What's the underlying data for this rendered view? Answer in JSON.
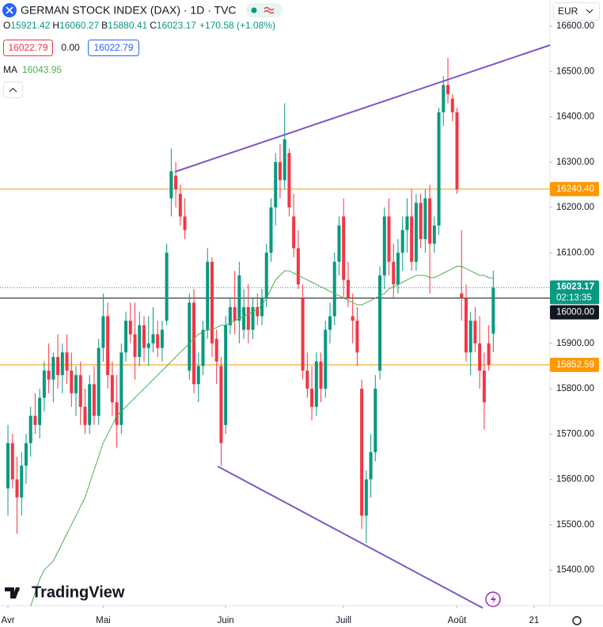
{
  "header": {
    "title": "GERMAN STOCK INDEX (DAX) · 1D · TVC",
    "ohlc": [
      {
        "key": "O",
        "value": "15921.42"
      },
      {
        "key": "H",
        "value": "16060.27"
      },
      {
        "key": "B",
        "value": "15880.41"
      },
      {
        "key": "C",
        "value": "16023.17"
      }
    ],
    "change": "+170.58 (+1.08%)",
    "bid": "16022.79",
    "spread": "0.00",
    "ask": "16022.79",
    "currency": "EUR",
    "brand": "TradingView"
  },
  "chart_data": {
    "type": "candlestick",
    "up_color": "#089981",
    "down_color": "#f23645",
    "ohlc": [
      [
        15580,
        15720,
        15520,
        15680
      ],
      [
        15680,
        15700,
        15580,
        15600
      ],
      [
        15600,
        15650,
        15480,
        15560
      ],
      [
        15560,
        15660,
        15520,
        15630
      ],
      [
        15630,
        15700,
        15590,
        15680
      ],
      [
        15680,
        15760,
        15650,
        15740
      ],
      [
        15740,
        15790,
        15700,
        15720
      ],
      [
        15720,
        15800,
        15690,
        15780
      ],
      [
        15780,
        15860,
        15750,
        15840
      ],
      [
        15840,
        15900,
        15790,
        15820
      ],
      [
        15820,
        15880,
        15770,
        15870
      ],
      [
        15870,
        15920,
        15800,
        15830
      ],
      [
        15830,
        15900,
        15790,
        15880
      ],
      [
        15880,
        15920,
        15810,
        15840
      ],
      [
        15840,
        15880,
        15760,
        15790
      ],
      [
        15790,
        15850,
        15740,
        15830
      ],
      [
        15830,
        15860,
        15720,
        15760
      ],
      [
        15760,
        15800,
        15700,
        15720
      ],
      [
        15720,
        15830,
        15700,
        15810
      ],
      [
        15810,
        15850,
        15720,
        15740
      ],
      [
        15740,
        15910,
        15720,
        15890
      ],
      [
        15890,
        16010,
        15860,
        15960
      ],
      [
        15960,
        15990,
        15800,
        15830
      ],
      [
        15830,
        15860,
        15740,
        15770
      ],
      [
        15770,
        15830,
        15670,
        15720
      ],
      [
        15720,
        15900,
        15700,
        15880
      ],
      [
        15880,
        15970,
        15860,
        15950
      ],
      [
        15950,
        15990,
        15900,
        15920
      ],
      [
        15920,
        15990,
        15820,
        15870
      ],
      [
        15870,
        15970,
        15850,
        15940
      ],
      [
        15940,
        15960,
        15860,
        15890
      ],
      [
        15890,
        15960,
        15850,
        15900
      ],
      [
        15900,
        15980,
        15880,
        15920
      ],
      [
        15920,
        15950,
        15870,
        15890
      ],
      [
        15890,
        15950,
        15860,
        15930
      ],
      [
        15950,
        16120,
        15940,
        16100
      ],
      [
        16220,
        16330,
        16180,
        16280
      ],
      [
        16270,
        16300,
        16200,
        16240
      ],
      [
        16230,
        16250,
        16160,
        16180
      ],
      [
        16180,
        16220,
        16130,
        16150
      ],
      [
        15840,
        16010,
        15820,
        15990
      ],
      [
        15990,
        16020,
        15790,
        15810
      ],
      [
        15810,
        15880,
        15770,
        15850
      ],
      [
        15850,
        15950,
        15830,
        15930
      ],
      [
        15930,
        16110,
        15910,
        16080
      ],
      [
        16080,
        16090,
        15870,
        15900
      ],
      [
        15910,
        15930,
        15810,
        15860
      ],
      [
        15850,
        15870,
        15630,
        15680
      ],
      [
        15720,
        15960,
        15700,
        15940
      ],
      [
        15940,
        16000,
        15920,
        15980
      ],
      [
        15980,
        16060,
        15920,
        15950
      ],
      [
        15950,
        16080,
        15900,
        16050
      ],
      [
        15930,
        16020,
        15910,
        15980
      ],
      [
        15980,
        16030,
        15900,
        15930
      ],
      [
        15930,
        16000,
        15910,
        15980
      ],
      [
        15980,
        16010,
        15940,
        15960
      ],
      [
        15960,
        16020,
        15940,
        16000
      ],
      [
        16000,
        16120,
        15980,
        16100
      ],
      [
        16100,
        16220,
        16080,
        16200
      ],
      [
        16200,
        16320,
        16160,
        16300
      ],
      [
        16300,
        16340,
        16220,
        16260
      ],
      [
        16260,
        16430,
        16240,
        16350
      ],
      [
        16320,
        16330,
        16180,
        16200
      ],
      [
        16180,
        16230,
        16090,
        16110
      ],
      [
        16110,
        16150,
        16020,
        16030
      ],
      [
        16000,
        16030,
        15820,
        15840
      ],
      [
        15840,
        15880,
        15780,
        15800
      ],
      [
        15800,
        15850,
        15730,
        15760
      ],
      [
        15760,
        15880,
        15740,
        15860
      ],
      [
        15860,
        15880,
        15770,
        15800
      ],
      [
        15800,
        15950,
        15780,
        15930
      ],
      [
        15930,
        15990,
        15900,
        15960
      ],
      [
        15960,
        16100,
        15940,
        16080
      ],
      [
        16080,
        16180,
        16050,
        16160
      ],
      [
        16180,
        16220,
        16000,
        16040
      ],
      [
        16040,
        16080,
        15980,
        16000
      ],
      [
        15960,
        16010,
        15900,
        15950
      ],
      [
        15950,
        15980,
        15850,
        15880
      ],
      [
        15800,
        15820,
        15490,
        15520
      ],
      [
        15520,
        15620,
        15460,
        15600
      ],
      [
        15600,
        15700,
        15560,
        15660
      ],
      [
        15660,
        15830,
        15640,
        15800
      ],
      [
        15840,
        16070,
        15820,
        16050
      ],
      [
        16050,
        16200,
        16020,
        16180
      ],
      [
        16180,
        16220,
        16050,
        16080
      ],
      [
        16080,
        16120,
        16000,
        16030
      ],
      [
        16030,
        16130,
        16010,
        16100
      ],
      [
        16100,
        16180,
        16060,
        16150
      ],
      [
        16150,
        16220,
        16100,
        16180
      ],
      [
        16180,
        16240,
        16060,
        16080
      ],
      [
        16080,
        16230,
        16060,
        16210
      ],
      [
        16210,
        16230,
        16110,
        16130
      ],
      [
        16130,
        16240,
        16100,
        16220
      ],
      [
        16220,
        16250,
        16010,
        16120
      ],
      [
        16120,
        16180,
        16100,
        16160
      ],
      [
        16160,
        16420,
        16140,
        16410
      ],
      [
        16410,
        16490,
        16380,
        16470
      ],
      [
        16470,
        16530,
        16430,
        16450
      ],
      [
        16440,
        16450,
        16390,
        16410
      ],
      [
        16410,
        16420,
        16230,
        16240
      ],
      [
        16010,
        16150,
        15950,
        16000
      ],
      [
        16000,
        16030,
        15860,
        15880
      ],
      [
        15880,
        15970,
        15830,
        15950
      ],
      [
        15950,
        15980,
        15880,
        15900
      ],
      [
        15900,
        15960,
        15800,
        15840
      ],
      [
        15840,
        15880,
        15710,
        15770
      ],
      [
        15900,
        15940,
        15840,
        15852.59
      ],
      [
        15921.42,
        16060.27,
        15880.41,
        16023.17
      ]
    ],
    "ma": {
      "name": "MA",
      "value_label": "16043.95",
      "color": "#4caf50",
      "values": [
        null,
        null,
        null,
        null,
        null,
        15320,
        15350,
        15380,
        15400,
        15410,
        15420,
        15440,
        15460,
        15480,
        15500,
        15520,
        15540,
        15560,
        15590,
        15620,
        15650,
        15680,
        15700,
        15720,
        15740,
        15750,
        15760,
        15770,
        15780,
        15790,
        15800,
        15810,
        15820,
        15830,
        15840,
        15850,
        15860,
        15870,
        15880,
        15890,
        15900,
        15910,
        15920,
        15925,
        15930,
        15930,
        15935,
        15940,
        15940,
        15945,
        15950,
        15955,
        15960,
        15965,
        15970,
        15975,
        15985,
        16000,
        16020,
        16040,
        16050,
        16060,
        16060,
        16055,
        16050,
        16045,
        16040,
        16035,
        16030,
        16025,
        16020,
        16015,
        16010,
        16005,
        16000,
        15995,
        15990,
        15985,
        15985,
        15990,
        15995,
        16000,
        16005,
        16010,
        16020,
        16025,
        16030,
        16035,
        16040,
        16045,
        16050,
        16050,
        16050,
        16045,
        16045,
        16050,
        16055,
        16060,
        16065,
        16070,
        16070,
        16065,
        16060,
        16055,
        16050,
        16050,
        16045,
        16043.95
      ]
    },
    "xlim": [
      -1.75,
      119.5
    ],
    "xticks": [
      {
        "value": 0,
        "label": "Avr"
      },
      {
        "value": 21,
        "label": "Mai"
      },
      {
        "value": 48,
        "label": "Juin"
      },
      {
        "value": 74,
        "label": "Juill"
      },
      {
        "value": 99,
        "label": "Août"
      },
      {
        "value": 116,
        "label": "21"
      }
    ],
    "ylim": [
      15321.4,
      16657.6
    ],
    "yticks": [
      {
        "value": 16600,
        "label": "16600.00"
      },
      {
        "value": 16500,
        "label": "16500.00"
      },
      {
        "value": 16400,
        "label": "16400.00"
      },
      {
        "value": 16300,
        "label": "16300.00"
      },
      {
        "value": 16200,
        "label": "16200.00"
      },
      {
        "value": 16100,
        "label": "16100.00"
      },
      {
        "value": 16000,
        "label": "16000.00"
      },
      {
        "value": 15900,
        "label": "15900.00"
      },
      {
        "value": 15800,
        "label": "15800.00"
      },
      {
        "value": 15700,
        "label": "15700.00"
      },
      {
        "value": 15600,
        "label": "15600.00"
      },
      {
        "value": 15500,
        "label": "15500.00"
      },
      {
        "value": 15400,
        "label": "15400.00"
      }
    ],
    "price_lines": [
      {
        "value": 16240.4,
        "label": "16240.40",
        "color": "#ff9800"
      },
      {
        "value": 15852.59,
        "label": "15852.59",
        "color": "#ff9800"
      },
      {
        "value": 16000,
        "label": "16000.00",
        "color": "#131722"
      }
    ],
    "last": {
      "value": 16023.17,
      "label": "16023.17",
      "countdown": "02:13:35",
      "color": "#089981"
    }
  }
}
